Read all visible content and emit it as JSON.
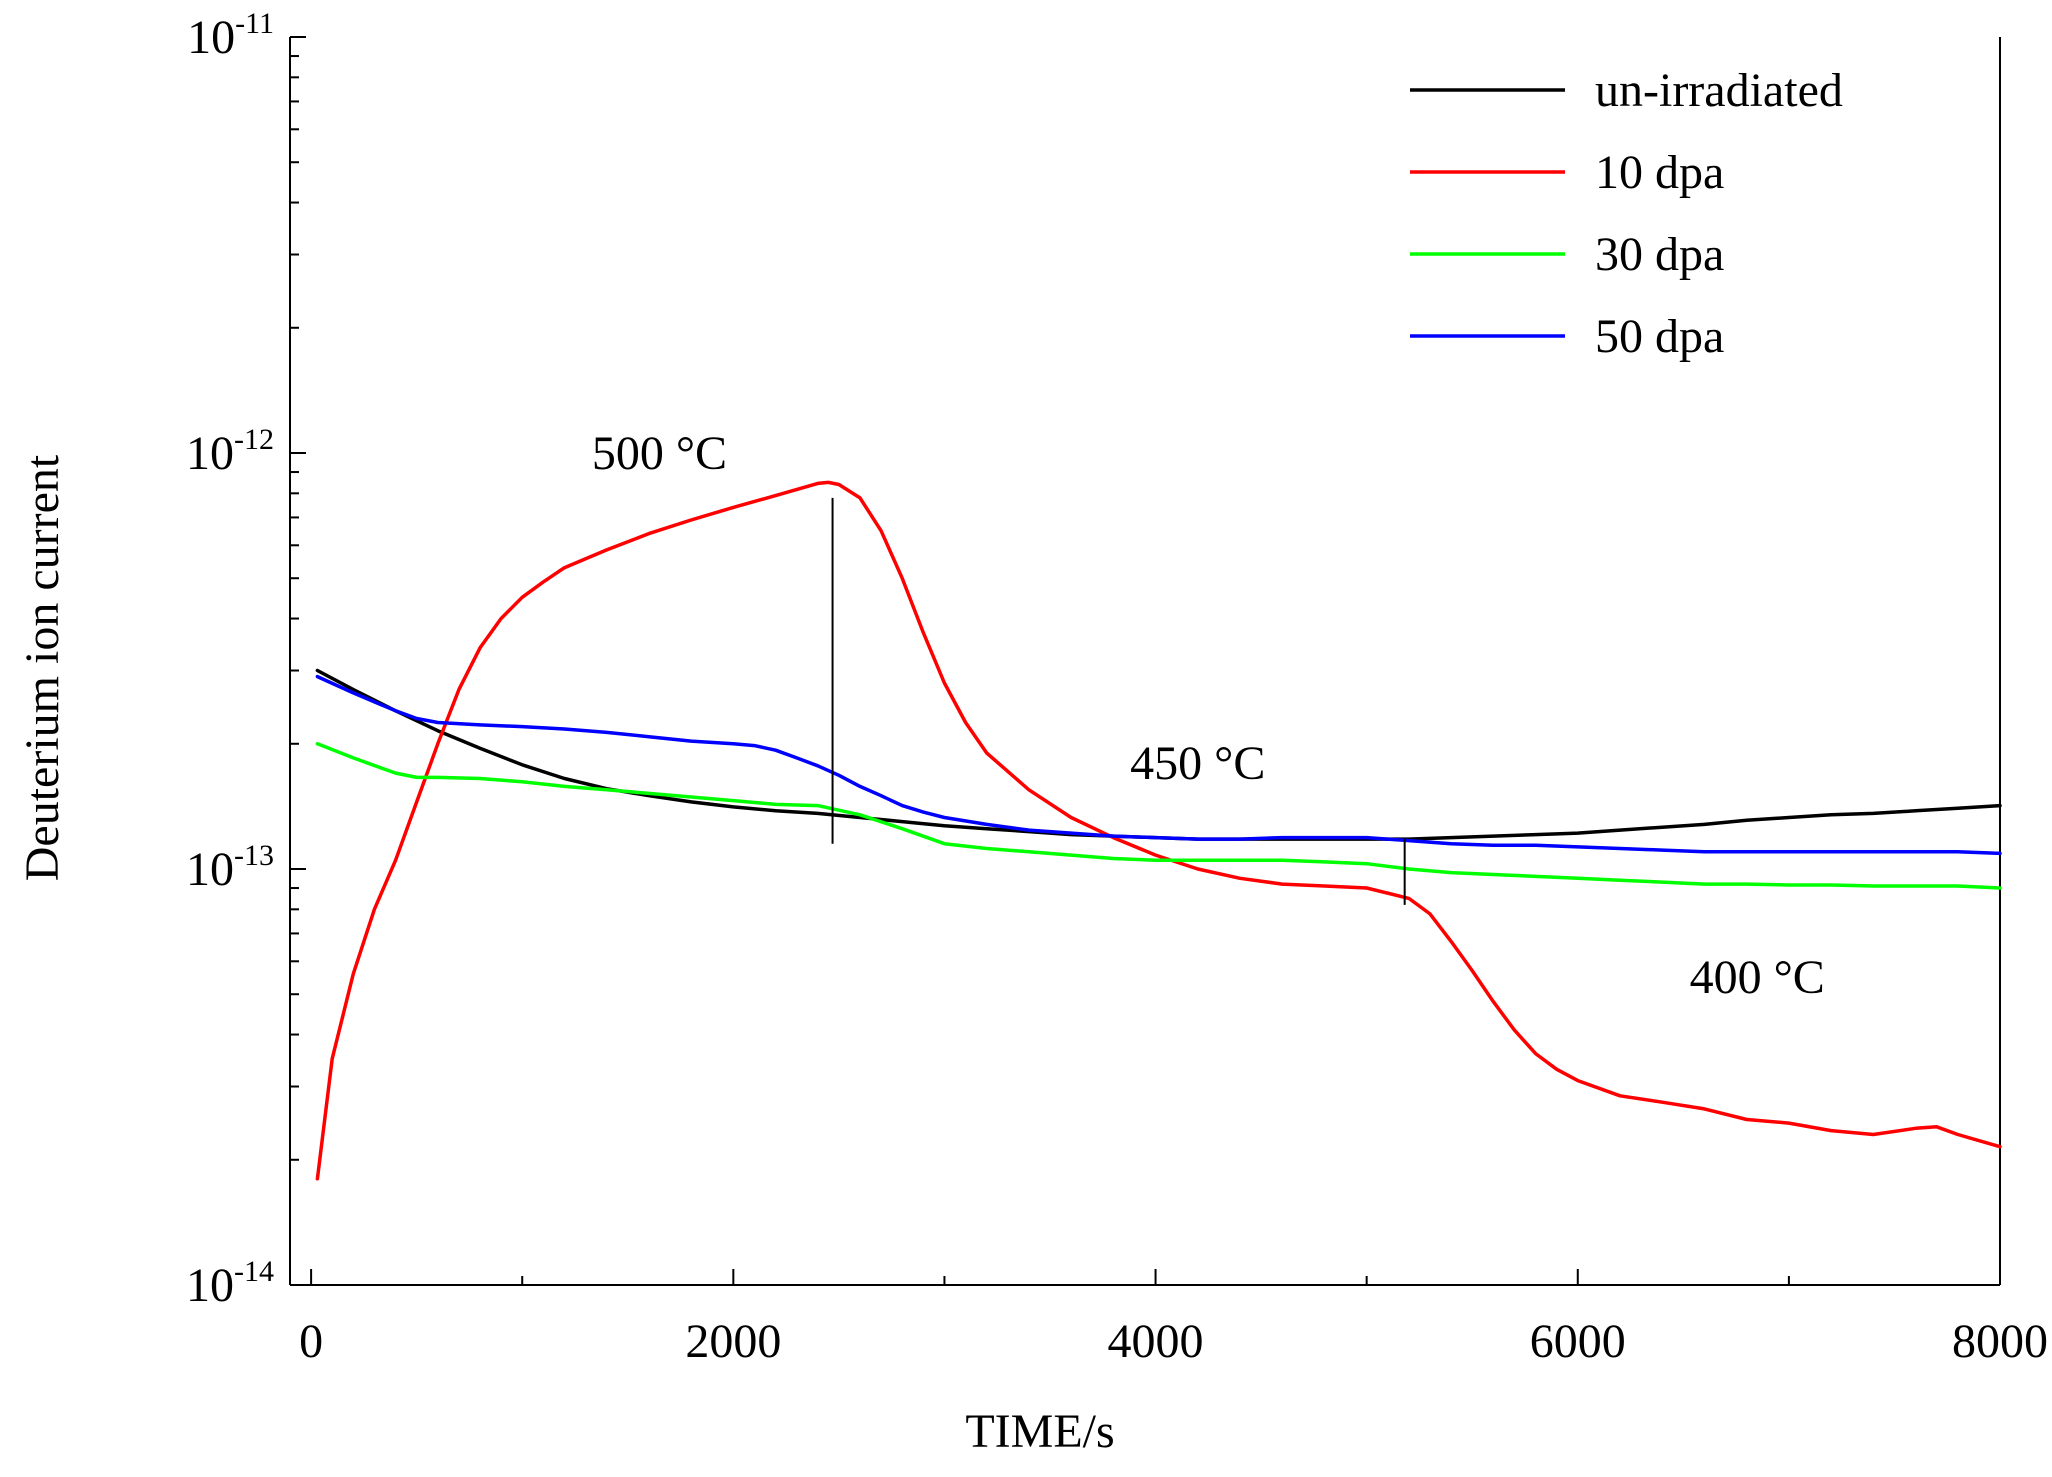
{
  "chart_data": {
    "type": "line",
    "title": "",
    "xlabel": "TIME/s",
    "ylabel": "Deuterium ion current",
    "xlim": [
      -100,
      8000
    ],
    "ylim_log10": [
      -14,
      -11
    ],
    "y_scale": "log",
    "x_ticks": [
      0,
      2000,
      4000,
      6000,
      8000
    ],
    "x_tick_labels": [
      "0",
      "2000",
      "4000",
      "6000",
      "8000"
    ],
    "y_ticks": [
      {
        "base": "10",
        "exp": "-11",
        "log": -11
      },
      {
        "base": "10",
        "exp": "-12",
        "log": -12
      },
      {
        "base": "10",
        "exp": "-13",
        "log": -13
      },
      {
        "base": "10",
        "exp": "-14",
        "log": -14
      }
    ],
    "legend_position": "top-right",
    "series": [
      {
        "name": "un-irradiated",
        "color": "#000000",
        "x": [
          30,
          200,
          400,
          600,
          800,
          1000,
          1200,
          1400,
          1600,
          1800,
          2000,
          2200,
          2400,
          2600,
          2800,
          3000,
          3200,
          3400,
          3600,
          3800,
          4000,
          4200,
          4400,
          4600,
          4800,
          5000,
          5200,
          5400,
          5600,
          5800,
          6000,
          6200,
          6400,
          6600,
          6800,
          7000,
          7200,
          7400,
          7600,
          7800,
          8000
        ],
        "y": [
          3e-13,
          2.7e-13,
          2.4e-13,
          2.15e-13,
          1.95e-13,
          1.78e-13,
          1.65e-13,
          1.56e-13,
          1.5e-13,
          1.45e-13,
          1.41e-13,
          1.38e-13,
          1.36e-13,
          1.33e-13,
          1.3e-13,
          1.27e-13,
          1.25e-13,
          1.23e-13,
          1.21e-13,
          1.2e-13,
          1.19e-13,
          1.18e-13,
          1.18e-13,
          1.18e-13,
          1.18e-13,
          1.18e-13,
          1.18e-13,
          1.19e-13,
          1.2e-13,
          1.21e-13,
          1.22e-13,
          1.24e-13,
          1.26e-13,
          1.28e-13,
          1.31e-13,
          1.33e-13,
          1.35e-13,
          1.36e-13,
          1.38e-13,
          1.4e-13,
          1.42e-13
        ]
      },
      {
        "name": "10 dpa",
        "color": "#ff0000",
        "x": [
          30,
          100,
          200,
          300,
          400,
          500,
          600,
          700,
          800,
          900,
          1000,
          1100,
          1200,
          1400,
          1600,
          1800,
          2000,
          2200,
          2400,
          2450,
          2500,
          2600,
          2700,
          2800,
          2900,
          3000,
          3100,
          3200,
          3400,
          3600,
          3800,
          4000,
          4200,
          4400,
          4600,
          4800,
          5000,
          5200,
          5300,
          5400,
          5500,
          5600,
          5700,
          5800,
          5900,
          6000,
          6200,
          6400,
          6600,
          6800,
          7000,
          7200,
          7400,
          7600,
          7700,
          7800,
          8000
        ],
        "y": [
          1.8e-14,
          3.5e-14,
          5.6e-14,
          8e-14,
          1.05e-13,
          1.45e-13,
          2e-13,
          2.7e-13,
          3.4e-13,
          4e-13,
          4.5e-13,
          4.9e-13,
          5.3e-13,
          5.85e-13,
          6.4e-13,
          6.9e-13,
          7.4e-13,
          7.9e-13,
          8.45e-13,
          8.5e-13,
          8.4e-13,
          7.8e-13,
          6.5e-13,
          5e-13,
          3.7e-13,
          2.8e-13,
          2.25e-13,
          1.9e-13,
          1.55e-13,
          1.33e-13,
          1.19e-13,
          1.08e-13,
          1e-13,
          9.5e-14,
          9.2e-14,
          9.1e-14,
          9e-14,
          8.5e-14,
          7.8e-14,
          6.7e-14,
          5.7e-14,
          4.8e-14,
          4.1e-14,
          3.6e-14,
          3.3e-14,
          3.1e-14,
          2.85e-14,
          2.75e-14,
          2.65e-14,
          2.5e-14,
          2.45e-14,
          2.35e-14,
          2.3e-14,
          2.38e-14,
          2.4e-14,
          2.3e-14,
          2.15e-14
        ]
      },
      {
        "name": "30 dpa",
        "color": "#00ff00",
        "x": [
          30,
          200,
          400,
          500,
          600,
          800,
          1000,
          1200,
          1400,
          1600,
          1800,
          2000,
          2200,
          2400,
          2600,
          2800,
          3000,
          3200,
          3400,
          3600,
          3800,
          4000,
          4200,
          4400,
          4600,
          4800,
          5000,
          5200,
          5400,
          5600,
          5800,
          6000,
          6200,
          6400,
          6600,
          6800,
          7000,
          7200,
          7400,
          7600,
          7800,
          8000
        ],
        "y": [
          2e-13,
          1.85e-13,
          1.7e-13,
          1.66e-13,
          1.66e-13,
          1.65e-13,
          1.62e-13,
          1.58e-13,
          1.55e-13,
          1.52e-13,
          1.49e-13,
          1.46e-13,
          1.43e-13,
          1.42e-13,
          1.35e-13,
          1.25e-13,
          1.15e-13,
          1.12e-13,
          1.1e-13,
          1.08e-13,
          1.06e-13,
          1.05e-13,
          1.05e-13,
          1.05e-13,
          1.05e-13,
          1.04e-13,
          1.03e-13,
          1e-13,
          9.8e-14,
          9.7e-14,
          9.6e-14,
          9.5e-14,
          9.4e-14,
          9.3e-14,
          9.2e-14,
          9.2e-14,
          9.15e-14,
          9.15e-14,
          9.1e-14,
          9.1e-14,
          9.1e-14,
          9e-14
        ]
      },
      {
        "name": "50 dpa",
        "color": "#0000ff",
        "x": [
          30,
          200,
          400,
          500,
          600,
          800,
          1000,
          1200,
          1400,
          1600,
          1800,
          2000,
          2100,
          2200,
          2300,
          2400,
          2500,
          2600,
          2700,
          2800,
          2900,
          3000,
          3200,
          3400,
          3600,
          3800,
          4000,
          4200,
          4400,
          4600,
          4800,
          5000,
          5200,
          5400,
          5600,
          5800,
          6000,
          6200,
          6400,
          6600,
          6800,
          7000,
          7200,
          7400,
          7600,
          7800,
          8000
        ],
        "y": [
          2.9e-13,
          2.65e-13,
          2.4e-13,
          2.3e-13,
          2.25e-13,
          2.22e-13,
          2.2e-13,
          2.17e-13,
          2.13e-13,
          2.08e-13,
          2.03e-13,
          2e-13,
          1.98e-13,
          1.93e-13,
          1.85e-13,
          1.77e-13,
          1.68e-13,
          1.58e-13,
          1.5e-13,
          1.42e-13,
          1.37e-13,
          1.33e-13,
          1.28e-13,
          1.24e-13,
          1.22e-13,
          1.2e-13,
          1.19e-13,
          1.18e-13,
          1.18e-13,
          1.19e-13,
          1.19e-13,
          1.19e-13,
          1.17e-13,
          1.15e-13,
          1.14e-13,
          1.14e-13,
          1.13e-13,
          1.12e-13,
          1.11e-13,
          1.1e-13,
          1.1e-13,
          1.1e-13,
          1.1e-13,
          1.1e-13,
          1.1e-13,
          1.1e-13,
          1.09e-13
        ]
      }
    ],
    "annotations": [
      {
        "text": "500 °C",
        "x": 1650,
        "y": 1e-12
      },
      {
        "text": "450 °C",
        "x": 4200,
        "y": 1.8e-13
      },
      {
        "text": "400 °C",
        "x": 6850,
        "y": 5.5e-14
      }
    ],
    "marker_lines": [
      {
        "x": 2470,
        "y_from": 7.8e-13,
        "y_to": 1.15e-13
      },
      {
        "x": 5180,
        "y_from": 1.18e-13,
        "y_to": 8.2e-14
      }
    ]
  }
}
